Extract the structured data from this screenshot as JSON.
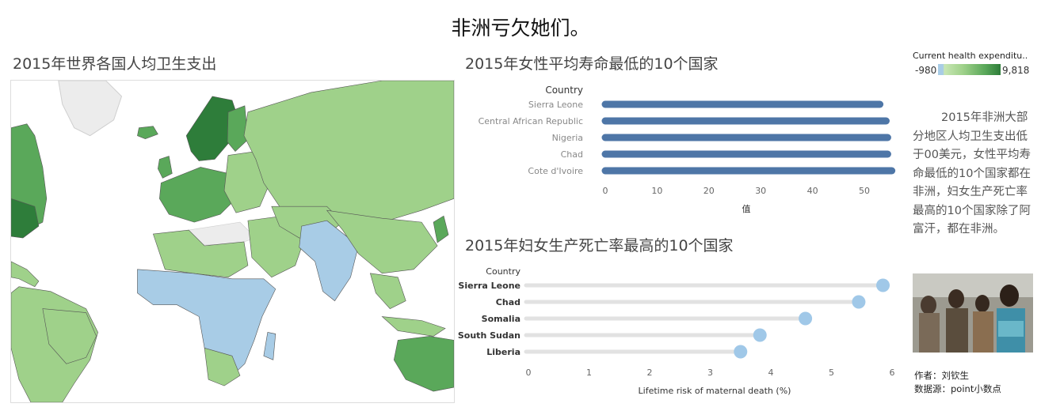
{
  "dashboard": {
    "title": "非洲亏欠她们。"
  },
  "map": {
    "title": "2015年世界各国人均卫生支出"
  },
  "legend": {
    "title": "Current health expenditu..",
    "min": "-980",
    "max": "9,818",
    "colors": [
      "#a8cce6",
      "#c8e6b4",
      "#9fd18a",
      "#5aa85a",
      "#2e7d3a"
    ]
  },
  "side_text": {
    "body": "2015年非洲大部分地区人均卫生支出低于00美元，女性平均寿命最低的10个国家都在非洲，妇女生产死亡率最高的10个国家除了阿富汗，都在非洲。"
  },
  "credits": {
    "author": "作者：刘钦生",
    "source": "数据源：point小数点"
  },
  "chart_data": [
    {
      "type": "bar",
      "title": "2015年女性平均寿命最低的10个国家",
      "orientation": "horizontal",
      "row_header": "Country",
      "categories": [
        "Sierra Leone",
        "Central African Republic",
        "Nigeria",
        "Chad",
        "Cote d'Ivoire"
      ],
      "values": [
        53.0,
        54.2,
        54.5,
        54.5,
        55.3
      ],
      "xlabel": "值",
      "xlim": [
        0,
        55
      ],
      "xticks": [
        0,
        10,
        20,
        30,
        40,
        50
      ],
      "color": "#4e76a7"
    },
    {
      "type": "scatter",
      "subtype": "lollipop",
      "title": "2015年妇女生产死亡率最高的10个国家",
      "row_header": "Country",
      "categories": [
        "Sierra Leone",
        "Chad",
        "Somalia",
        "South Sudan",
        "Liberia"
      ],
      "values": [
        5.85,
        5.45,
        4.57,
        3.82,
        3.5
      ],
      "xlabel": "Lifetime risk of maternal death (%)",
      "xlim": [
        0,
        6
      ],
      "xticks": [
        0,
        1,
        2,
        3,
        4,
        5,
        6
      ],
      "color": "#a0c8e8"
    }
  ]
}
